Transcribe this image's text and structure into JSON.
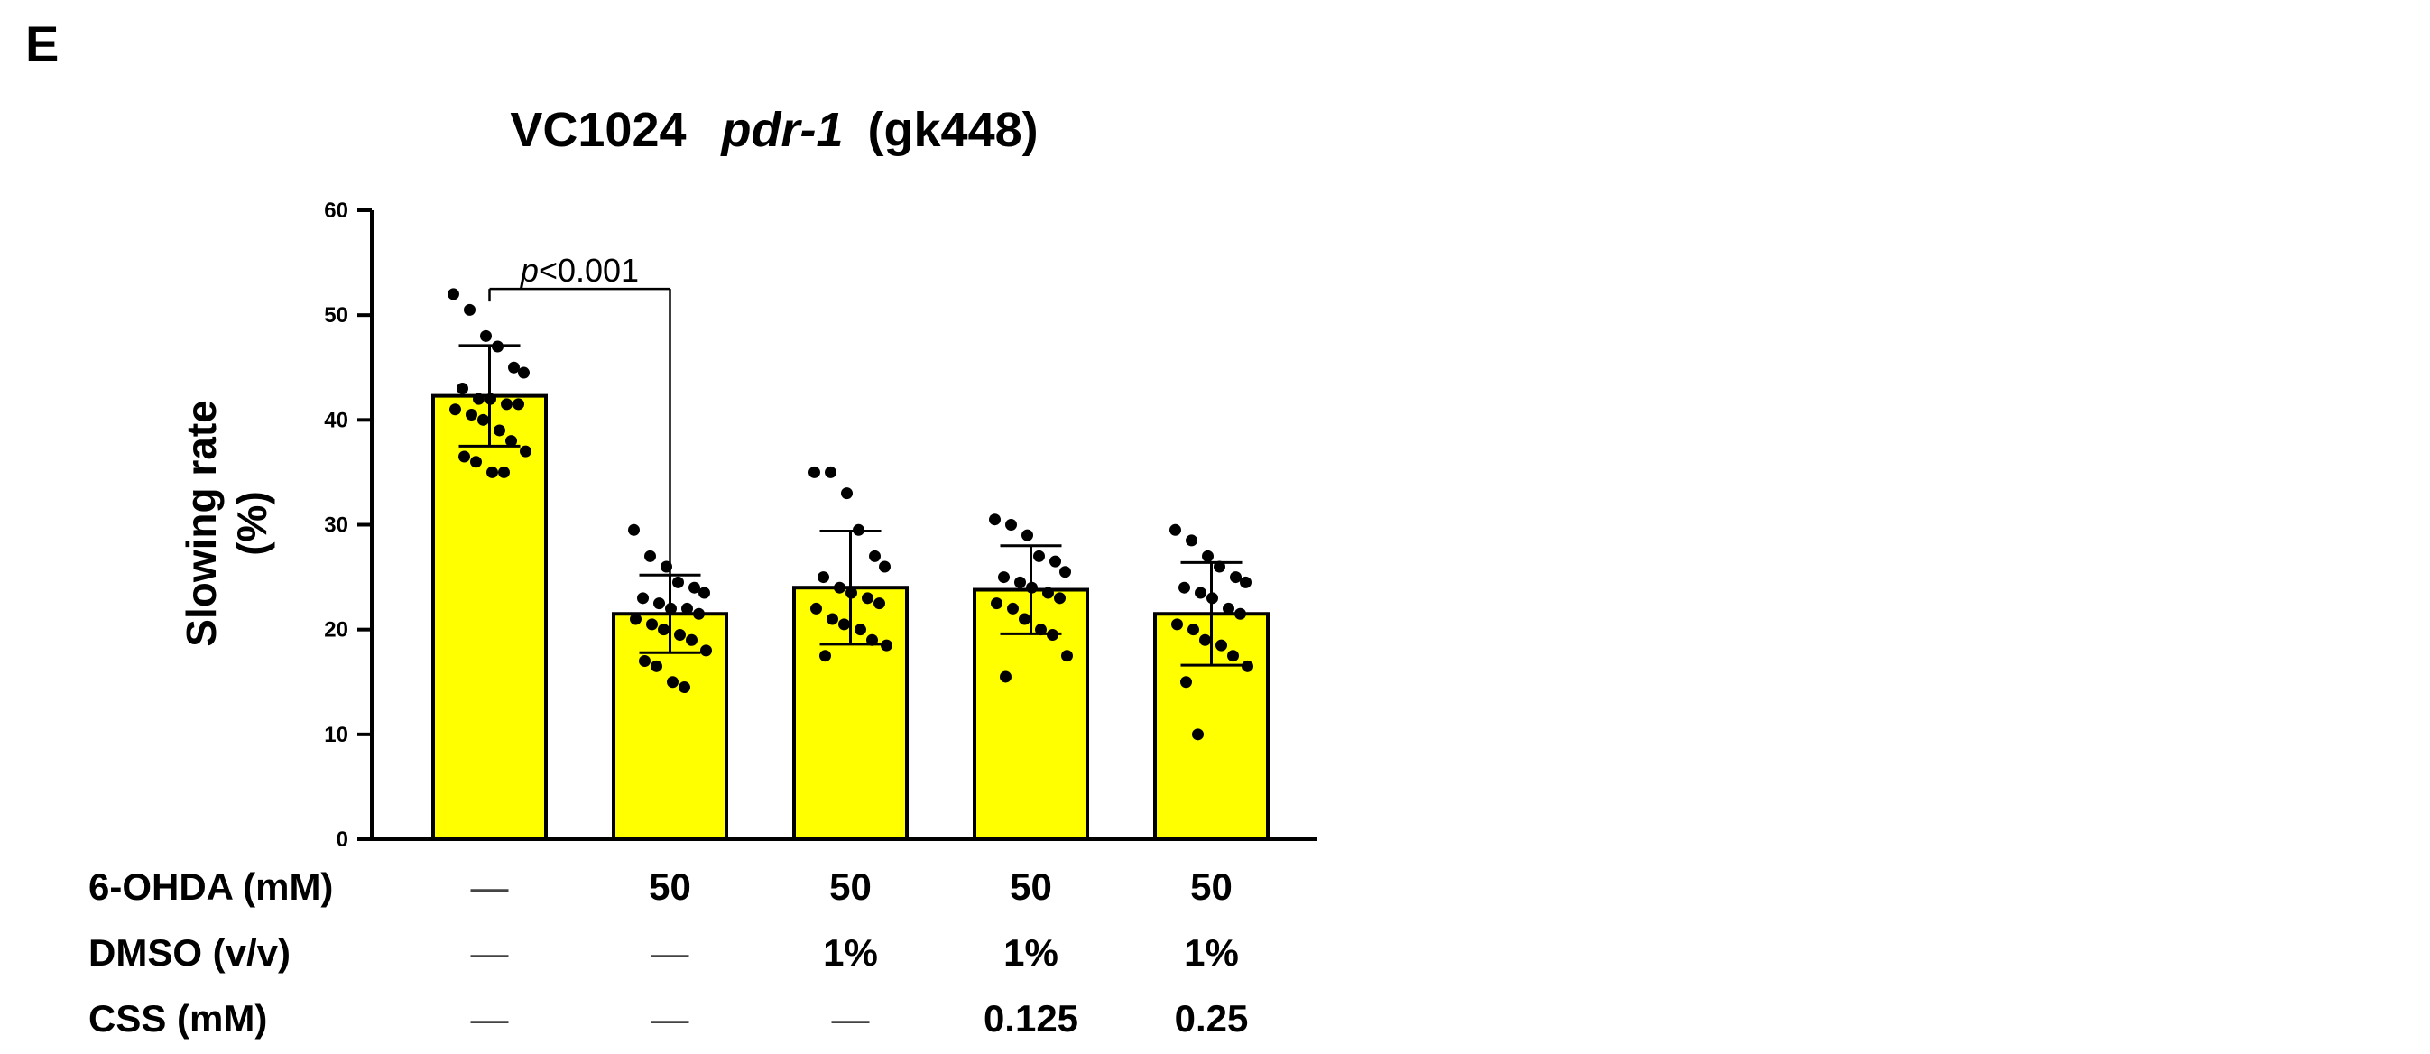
{
  "panel_label": "E",
  "title": {
    "strain": "VC1024",
    "gene": "pdr-1",
    "allele": "(gk448)"
  },
  "chart_data": {
    "type": "bar",
    "title": "VC1024 pdr-1 (gk448)",
    "ylabel": "Slowing rate (%)",
    "ylabel_lines": [
      "Slowing  rate",
      "(%)"
    ],
    "ylim": [
      0,
      60
    ],
    "yticks": [
      0,
      10,
      20,
      30,
      40,
      50,
      60
    ],
    "grid": false,
    "bar_color": "#ffff00",
    "categories": [
      "1",
      "2",
      "3",
      "4",
      "5"
    ],
    "values": [
      42.3,
      21.5,
      24.0,
      23.8,
      21.5
    ],
    "error_sd": [
      4.8,
      3.7,
      5.4,
      4.2,
      4.9
    ],
    "points": [
      [
        52.0,
        50.5,
        48.0,
        47.0,
        45.0,
        44.5,
        43.0,
        42.0,
        42.0,
        41.5,
        41.5,
        41.0,
        40.5,
        40.0,
        39.0,
        38.0,
        37.0,
        36.5,
        36.0,
        35.0,
        35.0
      ],
      [
        29.5,
        27.0,
        26.0,
        24.5,
        24.0,
        23.5,
        23.0,
        22.5,
        22.0,
        22.0,
        21.5,
        21.0,
        20.5,
        20.0,
        19.5,
        19.0,
        18.0,
        17.0,
        16.5,
        15.0,
        14.5
      ],
      [
        35.0,
        35.0,
        33.0,
        29.5,
        27.0,
        26.0,
        25.0,
        24.0,
        23.5,
        23.0,
        22.5,
        22.0,
        21.0,
        20.5,
        20.0,
        19.0,
        18.5,
        17.5
      ],
      [
        30.5,
        30.0,
        29.0,
        27.0,
        26.5,
        25.5,
        25.0,
        24.5,
        24.0,
        23.5,
        23.0,
        22.5,
        22.0,
        21.0,
        20.0,
        19.5,
        17.5,
        15.5
      ],
      [
        29.5,
        28.5,
        27.0,
        26.0,
        25.0,
        24.5,
        24.0,
        23.5,
        23.0,
        22.0,
        21.5,
        20.5,
        20.0,
        19.0,
        18.5,
        17.5,
        16.5,
        15.0,
        10.0
      ]
    ],
    "annotations": [
      {
        "text_italic": "p",
        "text": "<0.001",
        "from_bar": 0,
        "to_bar": 1,
        "y_value": 52.5
      }
    ],
    "conditions": [
      {
        "label": "6-OHDA (mM)",
        "values": [
          "—",
          "50",
          "50",
          "50",
          "50"
        ]
      },
      {
        "label": "DMSO (v/v)",
        "values": [
          "—",
          "—",
          "1%",
          "1%",
          "1%"
        ]
      },
      {
        "label": "CSS  (mM)",
        "values": [
          "—",
          "—",
          "—",
          "0.125",
          "0.25"
        ]
      }
    ]
  }
}
